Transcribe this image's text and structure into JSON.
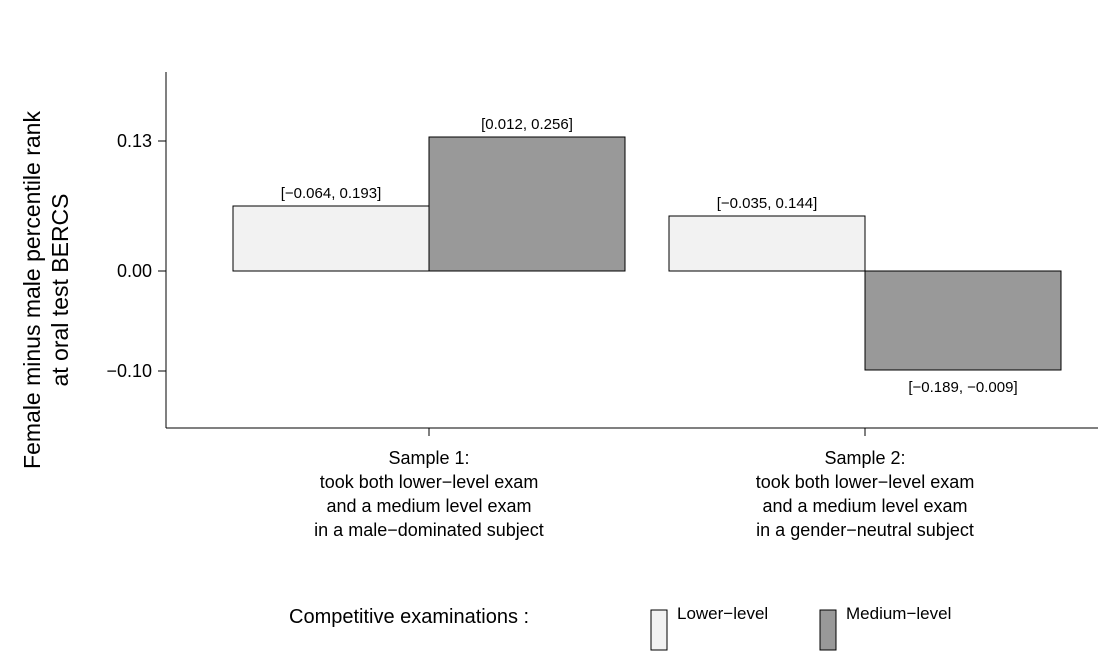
{
  "chart_data": {
    "type": "bar",
    "title": "",
    "ylabel_lines": [
      "Female minus male percentile rank",
      "at oral test BERCS"
    ],
    "xlabel": "",
    "categories": [
      {
        "lines": [
          "Sample 1:",
          "took both lower−level exam",
          "and a medium level exam",
          "in a male−dominated subject"
        ]
      },
      {
        "lines": [
          "Sample 2:",
          "took both lower−level exam",
          "and a medium level exam",
          "in a gender−neutral subject"
        ]
      }
    ],
    "series": [
      {
        "name": "Lower−level",
        "color": "#f2f2f2",
        "values": [
          0.065,
          0.055
        ],
        "ci_labels": [
          "[−0.064, 0.193]",
          "[−0.035, 0.144]"
        ]
      },
      {
        "name": "Medium−level",
        "color": "#999999",
        "values": [
          0.134,
          -0.099
        ],
        "ci_labels": [
          "[0.012, 0.256]",
          "[−0.189, −0.009]"
        ]
      }
    ],
    "yticks": [
      {
        "value": 0.13,
        "label": "0.13"
      },
      {
        "value": 0.0,
        "label": "0.00"
      },
      {
        "value": -0.1,
        "label": "−0.10"
      }
    ],
    "ylim": [
      -0.156,
      0.198
    ],
    "grid": false,
    "legend": {
      "title": "Competitive examinations :",
      "placement": "bottom"
    }
  }
}
